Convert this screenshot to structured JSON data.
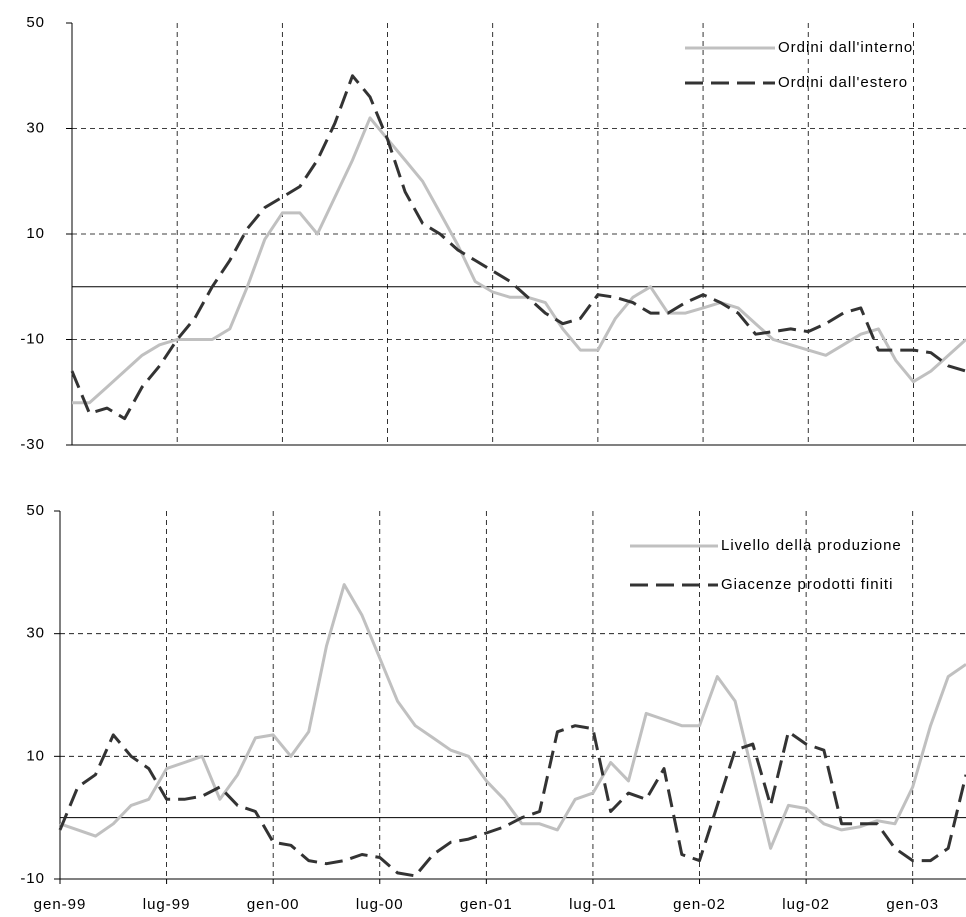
{
  "chart_data": [
    {
      "type": "line",
      "ylim": [
        -30,
        50
      ],
      "yticks": [
        -30,
        -10,
        10,
        30,
        50
      ],
      "grid": true,
      "zero_line": true,
      "legend": "top-right",
      "series": [
        {
          "name": "Ordini dall'interno",
          "color": "#c0c0c0",
          "dashed": false,
          "values": [
            -22,
            -22,
            -19,
            -16,
            -13,
            -11,
            -10,
            -10,
            -10,
            -8,
            0,
            9,
            14,
            14,
            10,
            17,
            24,
            32,
            28,
            24,
            20,
            14,
            8,
            1,
            -1,
            -2,
            -2,
            -3,
            -8,
            -12,
            -12,
            -6,
            -2,
            0,
            -5,
            -5,
            -4,
            -3,
            -4,
            -7,
            -10,
            -11,
            -12,
            -13,
            -11,
            -9,
            -8,
            -14,
            -18,
            -16,
            -13,
            -10
          ]
        },
        {
          "name": "Ordini dall'estero",
          "color": "#333333",
          "dashed": true,
          "values": [
            -16,
            -24,
            -23,
            -25,
            -19,
            -15,
            -10,
            -6,
            0,
            5,
            11,
            15,
            17,
            19,
            24,
            31,
            40,
            36,
            28,
            18,
            12,
            10,
            7,
            5,
            3,
            1,
            -2,
            -5,
            -7,
            -6,
            -1.5,
            -2,
            -3,
            -5,
            -5,
            -3,
            -1.5,
            -3,
            -5,
            -9,
            -8.5,
            -8,
            -8.5,
            -7,
            -5,
            -4,
            -12,
            -12,
            -12,
            -12.5,
            -15,
            -16
          ]
        }
      ]
    },
    {
      "type": "line",
      "categories": [
        "gen-99",
        null,
        null,
        null,
        null,
        null,
        "lug-99",
        null,
        null,
        null,
        null,
        null,
        "gen-00",
        null,
        null,
        null,
        null,
        null,
        "lug-00",
        null,
        null,
        null,
        null,
        null,
        "gen-01",
        null,
        null,
        null,
        null,
        null,
        "lug-01",
        null,
        null,
        null,
        null,
        null,
        "gen-02",
        null,
        null,
        null,
        null,
        null,
        "lug-02",
        null,
        null,
        null,
        null,
        null,
        "gen-03",
        null,
        null,
        null
      ],
      "ylim": [
        -10,
        50
      ],
      "yticks": [
        -10,
        10,
        30,
        50
      ],
      "grid": true,
      "zero_line": true,
      "legend": "top-right",
      "series": [
        {
          "name": "Livello della produzione",
          "color": "#c0c0c0",
          "dashed": false,
          "values": [
            -1,
            -2,
            -3,
            -1,
            2,
            3,
            8,
            9,
            10,
            3,
            7,
            13,
            13.5,
            10,
            14,
            28,
            38,
            33,
            26,
            19,
            15,
            13,
            11,
            10,
            6,
            3,
            -1,
            -1,
            -2,
            3,
            4,
            9,
            6,
            17,
            16,
            15,
            15,
            23,
            19,
            7,
            -5,
            2,
            1.5,
            -1,
            -2,
            -1.5,
            -0.5,
            -1,
            5,
            15,
            23,
            25
          ]
        },
        {
          "name": "Giacenze prodotti finiti",
          "color": "#333333",
          "dashed": true,
          "values": [
            -2,
            5,
            7,
            13.5,
            10,
            8,
            3,
            3,
            3.5,
            5,
            2,
            1,
            -4,
            -4.5,
            -7,
            -7.5,
            -7,
            -6,
            -6.5,
            -9,
            -9.5,
            -6,
            -4,
            -3.5,
            -2.5,
            -1.5,
            0,
            1,
            14,
            15,
            14.5,
            1,
            4,
            3,
            8,
            -6,
            -7,
            2,
            11,
            12,
            2,
            14,
            12,
            11,
            -1,
            -1,
            -1,
            -5,
            -7,
            -7,
            -5,
            7
          ]
        }
      ]
    }
  ]
}
